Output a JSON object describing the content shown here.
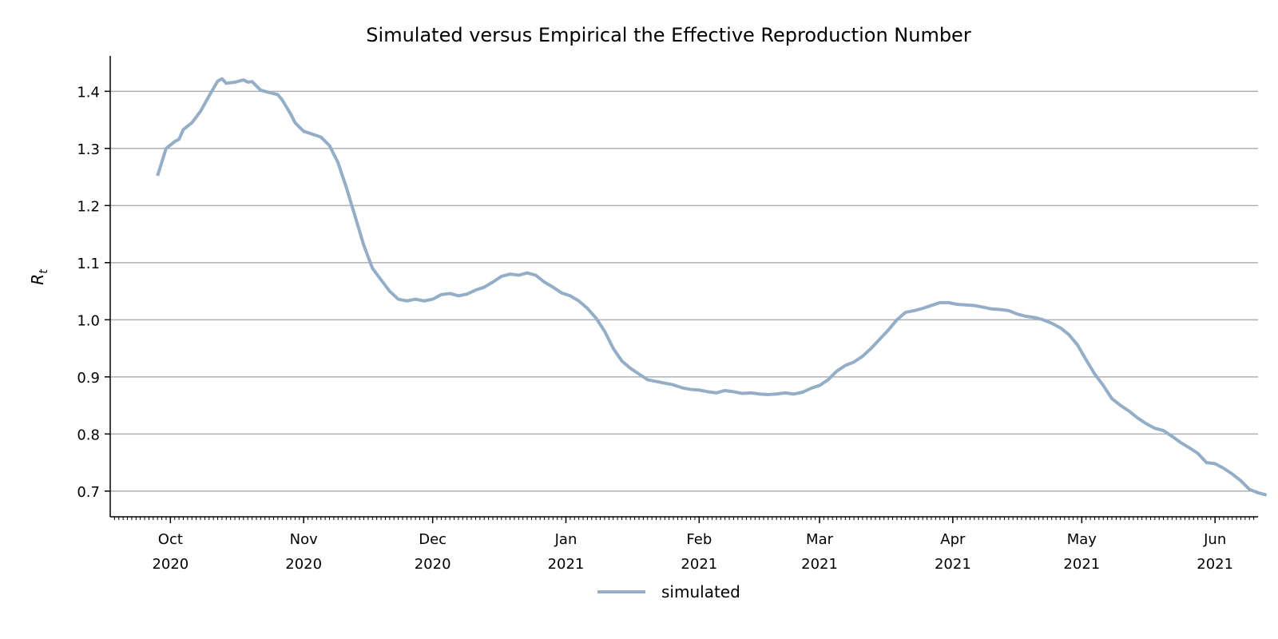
{
  "chart_data": {
    "type": "line",
    "title": "Simulated versus Empirical the Effective Reproduction Number",
    "xlabel": "",
    "ylabel": "R",
    "ylabel_subscript": "t",
    "ylim": [
      0.655,
      1.462
    ],
    "xlim": [
      "2020-09-17",
      "2021-06-11"
    ],
    "yticks": [
      0.7,
      0.8,
      0.9,
      1.0,
      1.1,
      1.2,
      1.3,
      1.4
    ],
    "ytick_labels": [
      "0.7",
      "0.8",
      "0.9",
      "1.0",
      "1.1",
      "1.2",
      "1.3",
      "1.4"
    ],
    "xticks": [
      {
        "date": "2020-10-01",
        "month": "Oct",
        "year": "2020"
      },
      {
        "date": "2020-11-01",
        "month": "Nov",
        "year": "2020"
      },
      {
        "date": "2020-12-01",
        "month": "Dec",
        "year": "2020"
      },
      {
        "date": "2021-01-01",
        "month": "Jan",
        "year": "2021"
      },
      {
        "date": "2021-02-01",
        "month": "Feb",
        "year": "2021"
      },
      {
        "date": "2021-03-01",
        "month": "Mar",
        "year": "2021"
      },
      {
        "date": "2021-04-01",
        "month": "Apr",
        "year": "2021"
      },
      {
        "date": "2021-05-01",
        "month": "May",
        "year": "2021"
      },
      {
        "date": "2021-06-01",
        "month": "Jun",
        "year": "2021"
      }
    ],
    "grid": "horizontal",
    "legend_position": "bottom-center",
    "colors": {
      "simulated": "#94aec8",
      "grid": "#b0b0b0",
      "axis": "#000000"
    },
    "series": [
      {
        "name": "simulated",
        "points": [
          [
            "2020-09-28",
            1.252
          ],
          [
            "2020-09-30",
            1.3
          ],
          [
            "2020-10-02",
            1.312
          ],
          [
            "2020-10-03",
            1.316
          ],
          [
            "2020-10-04",
            1.333
          ],
          [
            "2020-10-06",
            1.345
          ],
          [
            "2020-10-08",
            1.365
          ],
          [
            "2020-10-10",
            1.392
          ],
          [
            "2020-10-12",
            1.418
          ],
          [
            "2020-10-13",
            1.422
          ],
          [
            "2020-10-14",
            1.414
          ],
          [
            "2020-10-16",
            1.416
          ],
          [
            "2020-10-18",
            1.42
          ],
          [
            "2020-10-19",
            1.416
          ],
          [
            "2020-10-20",
            1.417
          ],
          [
            "2020-10-22",
            1.402
          ],
          [
            "2020-10-24",
            1.398
          ],
          [
            "2020-10-26",
            1.394
          ],
          [
            "2020-10-27",
            1.385
          ],
          [
            "2020-10-29",
            1.36
          ],
          [
            "2020-10-30",
            1.345
          ],
          [
            "2020-11-01",
            1.33
          ],
          [
            "2020-11-03",
            1.325
          ],
          [
            "2020-11-05",
            1.32
          ],
          [
            "2020-11-07",
            1.305
          ],
          [
            "2020-11-09",
            1.275
          ],
          [
            "2020-11-11",
            1.23
          ],
          [
            "2020-11-13",
            1.18
          ],
          [
            "2020-11-15",
            1.13
          ],
          [
            "2020-11-17",
            1.09
          ],
          [
            "2020-11-19",
            1.07
          ],
          [
            "2020-11-21",
            1.05
          ],
          [
            "2020-11-23",
            1.036
          ],
          [
            "2020-11-25",
            1.033
          ],
          [
            "2020-11-27",
            1.036
          ],
          [
            "2020-11-29",
            1.033
          ],
          [
            "2020-12-01",
            1.036
          ],
          [
            "2020-12-03",
            1.044
          ],
          [
            "2020-12-05",
            1.046
          ],
          [
            "2020-12-07",
            1.042
          ],
          [
            "2020-12-09",
            1.045
          ],
          [
            "2020-12-11",
            1.052
          ],
          [
            "2020-12-13",
            1.057
          ],
          [
            "2020-12-15",
            1.066
          ],
          [
            "2020-12-17",
            1.076
          ],
          [
            "2020-12-19",
            1.08
          ],
          [
            "2020-12-21",
            1.078
          ],
          [
            "2020-12-23",
            1.082
          ],
          [
            "2020-12-25",
            1.078
          ],
          [
            "2020-12-27",
            1.066
          ],
          [
            "2020-12-29",
            1.057
          ],
          [
            "2020-12-31",
            1.047
          ],
          [
            "2021-01-02",
            1.042
          ],
          [
            "2021-01-04",
            1.033
          ],
          [
            "2021-01-06",
            1.02
          ],
          [
            "2021-01-08",
            1.003
          ],
          [
            "2021-01-10",
            0.98
          ],
          [
            "2021-01-12",
            0.95
          ],
          [
            "2021-01-14",
            0.928
          ],
          [
            "2021-01-16",
            0.915
          ],
          [
            "2021-01-18",
            0.905
          ],
          [
            "2021-01-20",
            0.895
          ],
          [
            "2021-01-22",
            0.892
          ],
          [
            "2021-01-24",
            0.889
          ],
          [
            "2021-01-26",
            0.886
          ],
          [
            "2021-01-28",
            0.881
          ],
          [
            "2021-01-30",
            0.878
          ],
          [
            "2021-02-01",
            0.877
          ],
          [
            "2021-02-03",
            0.874
          ],
          [
            "2021-02-05",
            0.872
          ],
          [
            "2021-02-07",
            0.876
          ],
          [
            "2021-02-09",
            0.874
          ],
          [
            "2021-02-11",
            0.871
          ],
          [
            "2021-02-13",
            0.872
          ],
          [
            "2021-02-15",
            0.87
          ],
          [
            "2021-02-17",
            0.869
          ],
          [
            "2021-02-19",
            0.87
          ],
          [
            "2021-02-21",
            0.872
          ],
          [
            "2021-02-23",
            0.87
          ],
          [
            "2021-02-25",
            0.873
          ],
          [
            "2021-02-27",
            0.88
          ],
          [
            "2021-03-01",
            0.885
          ],
          [
            "2021-03-03",
            0.895
          ],
          [
            "2021-03-05",
            0.91
          ],
          [
            "2021-03-07",
            0.92
          ],
          [
            "2021-03-09",
            0.926
          ],
          [
            "2021-03-11",
            0.936
          ],
          [
            "2021-03-13",
            0.95
          ],
          [
            "2021-03-15",
            0.966
          ],
          [
            "2021-03-17",
            0.982
          ],
          [
            "2021-03-19",
            1.0
          ],
          [
            "2021-03-21",
            1.013
          ],
          [
            "2021-03-23",
            1.016
          ],
          [
            "2021-03-25",
            1.02
          ],
          [
            "2021-03-27",
            1.025
          ],
          [
            "2021-03-29",
            1.03
          ],
          [
            "2021-03-31",
            1.03
          ],
          [
            "2021-04-02",
            1.027
          ],
          [
            "2021-04-04",
            1.026
          ],
          [
            "2021-04-06",
            1.025
          ],
          [
            "2021-04-08",
            1.022
          ],
          [
            "2021-04-10",
            1.019
          ],
          [
            "2021-04-12",
            1.018
          ],
          [
            "2021-04-14",
            1.016
          ],
          [
            "2021-04-16",
            1.01
          ],
          [
            "2021-04-18",
            1.006
          ],
          [
            "2021-04-20",
            1.004
          ],
          [
            "2021-04-22",
            1.0
          ],
          [
            "2021-04-24",
            0.994
          ],
          [
            "2021-04-26",
            0.986
          ],
          [
            "2021-04-28",
            0.974
          ],
          [
            "2021-04-30",
            0.956
          ],
          [
            "2021-05-02",
            0.93
          ],
          [
            "2021-05-04",
            0.905
          ],
          [
            "2021-05-06",
            0.885
          ],
          [
            "2021-05-08",
            0.862
          ],
          [
            "2021-05-10",
            0.85
          ],
          [
            "2021-05-12",
            0.84
          ],
          [
            "2021-05-14",
            0.828
          ],
          [
            "2021-05-16",
            0.818
          ],
          [
            "2021-05-18",
            0.81
          ],
          [
            "2021-05-20",
            0.806
          ],
          [
            "2021-05-22",
            0.796
          ],
          [
            "2021-05-24",
            0.785
          ],
          [
            "2021-05-26",
            0.776
          ],
          [
            "2021-05-28",
            0.766
          ],
          [
            "2021-05-30",
            0.75
          ],
          [
            "2021-06-01",
            0.748
          ],
          [
            "2021-06-03",
            0.74
          ],
          [
            "2021-06-05",
            0.73
          ],
          [
            "2021-06-07",
            0.718
          ],
          [
            "2021-06-09",
            0.703
          ],
          [
            "2021-06-11",
            0.697
          ],
          [
            "2021-06-13",
            0.693
          ]
        ]
      }
    ]
  }
}
